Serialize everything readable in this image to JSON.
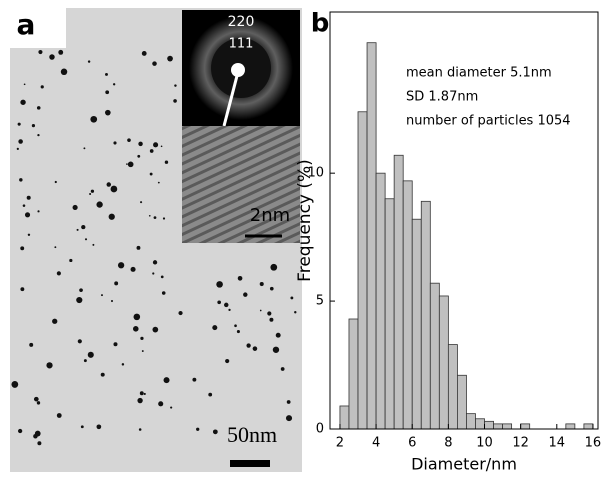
{
  "panel_a": {
    "label": "a",
    "diffraction_rings": [
      "220",
      "111"
    ],
    "hrtem_scale": "2nm",
    "tem_scale": "50nm"
  },
  "panel_b": {
    "label": "b"
  },
  "chart_data": {
    "type": "histogram",
    "xlabel": "Diameter/nm",
    "ylabel": "Frequency (%)",
    "annotations": [
      "mean diameter 5.1nm",
      "SD 1.87nm",
      "number of particles 1054"
    ],
    "bins": [
      2,
      2.5,
      3,
      3.5,
      4,
      4.5,
      5,
      5.5,
      6,
      6.5,
      7,
      7.5,
      8,
      8.5,
      9,
      9.5,
      10,
      10.5,
      11,
      11.5,
      12,
      12.5,
      13,
      13.5,
      14,
      14.5,
      15,
      15.5,
      16
    ],
    "values": [
      0.9,
      4.3,
      12.4,
      15.1,
      10.0,
      9.0,
      10.7,
      9.7,
      8.2,
      8.9,
      5.7,
      5.2,
      3.3,
      2.1,
      0.6,
      0.4,
      0.3,
      0.2,
      0.2,
      0,
      0.2,
      0,
      0,
      0,
      0,
      0.2,
      0,
      0.2
    ],
    "color": "#c0c0c0",
    "xlim": [
      1.45,
      16.28
    ],
    "xticks": [
      2,
      4,
      6,
      8,
      10,
      12,
      14,
      16
    ],
    "ylim": [
      0,
      16.3
    ],
    "yticks": [
      0,
      5,
      10
    ]
  }
}
